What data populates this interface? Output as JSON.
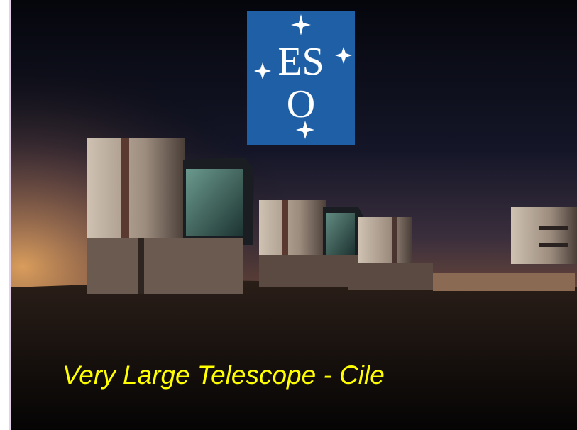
{
  "logo": {
    "top": "ES",
    "bottom": "O"
  },
  "caption": "Very Large Telescope - Cile"
}
